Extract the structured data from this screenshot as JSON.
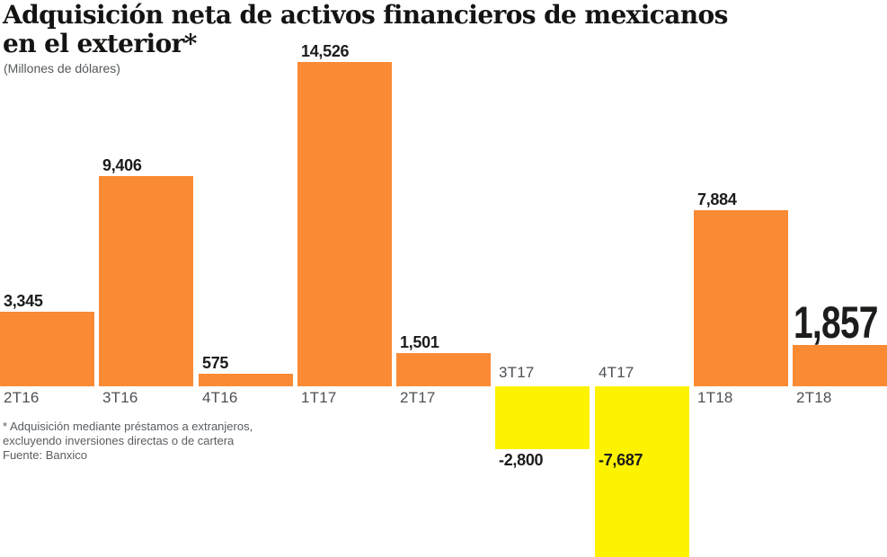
{
  "header": {
    "title_line1": "Adquisición neta de activos financieros de mexicanos",
    "title_line2": "en el exterior*",
    "subtitle": "(Millones de dólares)"
  },
  "chart_data": {
    "type": "bar",
    "title": "Adquisición neta de activos financieros de mexicanos en el exterior*",
    "ylabel": "Millones de dólares",
    "xlabel": "",
    "categories": [
      "2T16",
      "3T16",
      "4T16",
      "1T17",
      "2T17",
      "3T17",
      "4T17",
      "1T18",
      "2T18"
    ],
    "values": [
      3345,
      9406,
      575,
      14526,
      1501,
      -2800,
      -7687,
      7884,
      1857
    ],
    "value_labels": [
      "3,345",
      "9,406",
      "575",
      "14,526",
      "1,501",
      "-2,800",
      "-7,687",
      "7,884",
      "1,857"
    ],
    "emphasized_category": "2T18",
    "emphasized_index": 8,
    "positive_color": "#FA8A34",
    "negative_color": "#FDF200",
    "label_color": "#1d1c1b",
    "axis_label_color": "#4d5155",
    "ylim": [
      -7687,
      14526
    ],
    "grid": false,
    "legend": false
  },
  "footnote": {
    "lines": [
      "* Adquisición mediante préstamos a extranjeros,",
      "excluyendo inversiones directas o de cartera",
      "Fuente: Banxico"
    ]
  }
}
